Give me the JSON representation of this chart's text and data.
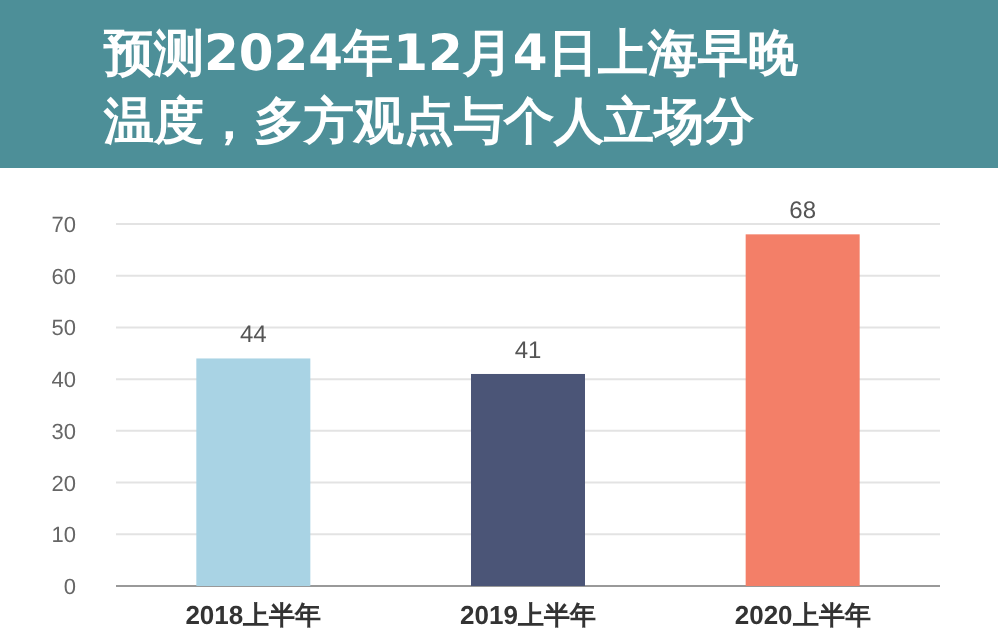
{
  "chart_data": {
    "type": "bar",
    "title": "预测2024年12月4日上海早晚温度，多方观点与个人立场分",
    "categories": [
      "2018上半年",
      "2019上半年",
      "2020上半年"
    ],
    "values": [
      44,
      41,
      68
    ],
    "colors": [
      "#a9d3e4",
      "#4b5577",
      "#f37f68"
    ],
    "data_labels": true,
    "grid": "y",
    "ylim": [
      0,
      70
    ],
    "yticks": [
      0,
      10,
      20,
      30,
      40,
      50,
      60,
      70
    ]
  }
}
